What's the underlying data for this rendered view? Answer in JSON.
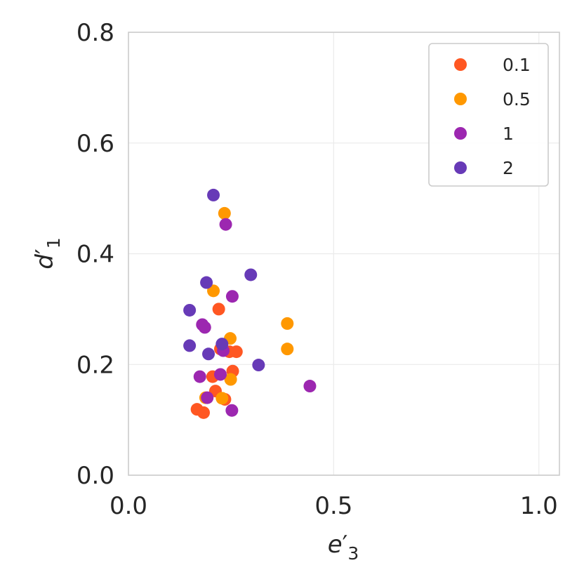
{
  "chart_data": {
    "type": "scatter",
    "title": "",
    "xlabel": "e′₃",
    "ylabel": "d′₁",
    "xlim": [
      0.0,
      1.05
    ],
    "ylim": [
      0.0,
      0.8
    ],
    "xticks": [
      0.0,
      0.5,
      1.0
    ],
    "xtick_labels": [
      "0.0",
      "0.5",
      "1.0"
    ],
    "yticks": [
      0.0,
      0.2,
      0.4,
      0.6,
      0.8
    ],
    "ytick_labels": [
      "0.0",
      "0.2",
      "0.4",
      "0.6",
      "0.8"
    ],
    "grid": true,
    "legend_position": "top-right",
    "series": [
      {
        "name": "0.1",
        "color": "#ff5722",
        "points": [
          [
            0.167,
            0.119
          ],
          [
            0.183,
            0.113
          ],
          [
            0.212,
            0.152
          ],
          [
            0.235,
            0.137
          ],
          [
            0.205,
            0.178
          ],
          [
            0.254,
            0.188
          ],
          [
            0.246,
            0.223
          ],
          [
            0.263,
            0.223
          ],
          [
            0.22,
            0.3
          ],
          [
            0.224,
            0.228
          ]
        ]
      },
      {
        "name": "0.5",
        "color": "#ff9800",
        "points": [
          [
            0.234,
            0.473
          ],
          [
            0.207,
            0.333
          ],
          [
            0.387,
            0.274
          ],
          [
            0.248,
            0.247
          ],
          [
            0.387,
            0.228
          ],
          [
            0.249,
            0.173
          ],
          [
            0.228,
            0.139
          ],
          [
            0.188,
            0.14
          ]
        ]
      },
      {
        "name": "1",
        "color": "#9c27b0",
        "points": [
          [
            0.237,
            0.453
          ],
          [
            0.253,
            0.323
          ],
          [
            0.18,
            0.272
          ],
          [
            0.186,
            0.267
          ],
          [
            0.231,
            0.225
          ],
          [
            0.174,
            0.178
          ],
          [
            0.224,
            0.182
          ],
          [
            0.442,
            0.161
          ],
          [
            0.192,
            0.14
          ],
          [
            0.252,
            0.117
          ]
        ]
      },
      {
        "name": "2",
        "color": "#673ab7",
        "points": [
          [
            0.207,
            0.506
          ],
          [
            0.298,
            0.362
          ],
          [
            0.19,
            0.348
          ],
          [
            0.149,
            0.298
          ],
          [
            0.149,
            0.234
          ],
          [
            0.228,
            0.237
          ],
          [
            0.195,
            0.219
          ],
          [
            0.317,
            0.199
          ]
        ]
      }
    ]
  }
}
